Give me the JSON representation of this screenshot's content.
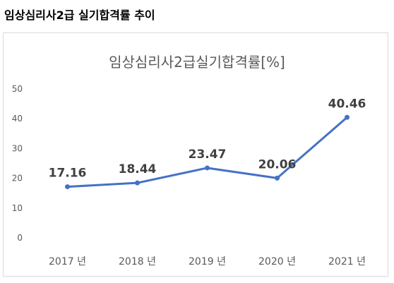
{
  "heading": "임상심리사2급 실기합격률 추이",
  "chart_data": {
    "type": "line",
    "title": "임상심리사2급실기합격률[%]",
    "categories": [
      "2017 년",
      "2018 년",
      "2019 년",
      "2020 년",
      "2021 년"
    ],
    "series": [
      {
        "values": [
          17.16,
          18.44,
          23.47,
          20.06,
          40.46
        ],
        "labels": [
          "17.16",
          "18.44",
          "23.47",
          "20.06",
          "40.46"
        ]
      }
    ],
    "yticks": [
      "0",
      "10",
      "20",
      "30",
      "40",
      "50"
    ],
    "ylim": [
      0,
      50
    ],
    "grid": false,
    "line_color": "#4472c4"
  }
}
